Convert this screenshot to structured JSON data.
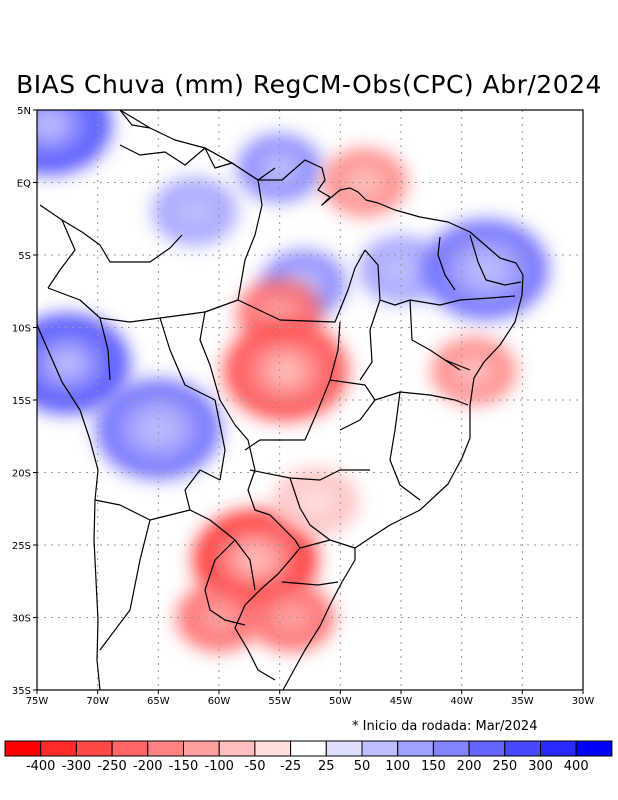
{
  "title": "BIAS Chuva (mm) RegCM-Obs(CPC) Abr/2024",
  "note": "* Inicio da rodada: Mar/2024",
  "lat_ticks": [
    "5N",
    "EQ",
    "5S",
    "10S",
    "15S",
    "20S",
    "25S",
    "30S",
    "35S"
  ],
  "lon_ticks": [
    "75W",
    "70W",
    "65W",
    "60W",
    "55W",
    "50W",
    "45W",
    "40W",
    "35W",
    "30W"
  ],
  "colorbar": {
    "colors": [
      "#ff0000",
      "#ff2a2a",
      "#ff4848",
      "#ff6666",
      "#ff8383",
      "#ffa0a0",
      "#ffbdbd",
      "#ffdede",
      "#ffffff",
      "#dedeff",
      "#bdbdff",
      "#a0a0ff",
      "#8383ff",
      "#6666ff",
      "#4848ff",
      "#2a2aff",
      "#0000ff"
    ],
    "labels": [
      "-400",
      "-300",
      "-250",
      "-200",
      "-150",
      "-100",
      "-50",
      "-25",
      "25",
      "50",
      "100",
      "150",
      "200",
      "250",
      "300",
      "400"
    ]
  },
  "map_extent": {
    "lon": [
      -75,
      -30
    ],
    "lat": [
      -35,
      5
    ]
  },
  "bias_areas": [
    {
      "name": "west-amazon-positive",
      "lon": -72.5,
      "lat": -12.5,
      "value": 300
    },
    {
      "name": "bolivia-positive",
      "lon": -65,
      "lat": -17,
      "value": 250
    },
    {
      "name": "northwest-amazon-positive",
      "lon": -74,
      "lat": 4,
      "value": 300
    },
    {
      "name": "central-amazon-positive",
      "lon": -62,
      "lat": -2,
      "value": 150
    },
    {
      "name": "guianas-positive",
      "lon": -55,
      "lat": 1,
      "value": 200
    },
    {
      "name": "para-positive",
      "lon": -53,
      "lat": -7,
      "value": 200
    },
    {
      "name": "maranhao-positive",
      "lon": -45,
      "lat": -6,
      "value": 150
    },
    {
      "name": "northeast-coast-positive",
      "lon": -38,
      "lat": -6,
      "value": 250
    },
    {
      "name": "amazon-mouth-negative",
      "lon": -48,
      "lat": 0,
      "value": -150
    },
    {
      "name": "para-negative",
      "lon": -55,
      "lat": -9,
      "value": -200
    },
    {
      "name": "mato-grosso-negative",
      "lon": -54.5,
      "lat": -13,
      "value": -250
    },
    {
      "name": "bahia-coast-negative",
      "lon": -39,
      "lat": -13,
      "value": -150
    },
    {
      "name": "paraguay-negative",
      "lon": -57,
      "lat": -26,
      "value": -300
    },
    {
      "name": "argentina-negative",
      "lon": -60,
      "lat": -30,
      "value": -200
    },
    {
      "name": "rio-grande-do-sul-negative",
      "lon": -54,
      "lat": -30,
      "value": -200
    },
    {
      "name": "sao-paulo-negative",
      "lon": -52,
      "lat": -22,
      "value": -50
    }
  ]
}
